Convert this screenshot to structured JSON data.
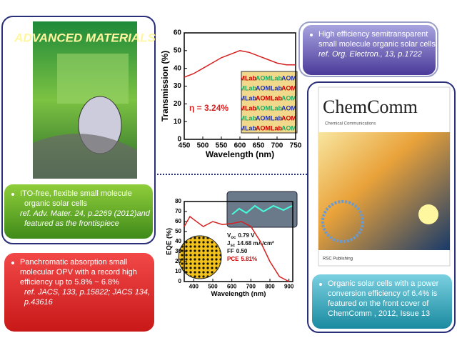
{
  "adv_mater": {
    "cover_title": "ADVANCED MATERIALS",
    "caption": [
      "ITO-free, flexible small molecule",
      "organic solar cells",
      "ref. Adv. Mater. 24, p.2269 (2012)and",
      "featured as the frontispiece"
    ]
  },
  "jacs": {
    "caption": [
      "Panchromatic absorption small",
      "molecular OPV with a record high",
      "efficiency up to  5.8% ~ 6.8%",
      "ref. JACS, 133, p.15822; JACS 134,",
      "p.43616"
    ]
  },
  "org_electron": {
    "caption": [
      "High efficiency semitransparent",
      "small molecule organic solar cells",
      "ref. Org. Electron., 13, p.1722"
    ]
  },
  "chemcomm": {
    "cover_title": "ChemComm",
    "cover_subtitle": "Chemical Communications",
    "publisher": "RSC Publishing",
    "caption": [
      "Organic solar cells with a power",
      "conversion efficiency of 6.4% is",
      "featured on the front cover of",
      "ChemComm , 2012, Issue 13"
    ]
  },
  "transmission": {
    "type": "line",
    "xlabel": "Wavelength (nm)",
    "ylabel": "Transmission (%)",
    "x": [
      450,
      475,
      500,
      525,
      550,
      575,
      600,
      625,
      650,
      675,
      700,
      725,
      750
    ],
    "values": [
      35,
      37,
      40,
      43,
      46,
      48,
      50,
      49,
      47,
      45,
      43,
      42,
      42
    ],
    "xlim": [
      450,
      750
    ],
    "ylim": [
      0,
      60
    ],
    "xticks": [
      450,
      500,
      550,
      600,
      650,
      700,
      750
    ],
    "yticks": [
      0,
      10,
      20,
      30,
      40,
      50,
      60
    ],
    "annotation": "η = 3.24%",
    "inset_label": "AOMLab",
    "color": "#d62020"
  },
  "eqe": {
    "type": "line",
    "xlabel": "Wavelength (nm)",
    "ylabel": "EQE (%)",
    "x": [
      350,
      380,
      400,
      450,
      500,
      550,
      600,
      650,
      700,
      750,
      800,
      850,
      900
    ],
    "values": [
      55,
      65,
      62,
      55,
      60,
      57,
      58,
      60,
      55,
      40,
      20,
      5,
      0
    ],
    "xlim": [
      350,
      920
    ],
    "ylim": [
      0,
      80
    ],
    "xticks": [
      400,
      500,
      600,
      700,
      800,
      900
    ],
    "yticks": [
      0,
      10,
      20,
      30,
      40,
      50,
      60,
      70,
      80
    ],
    "color": "#d62020",
    "parameters": [
      {
        "symbol": "V",
        "sub": "oc",
        "value": "0.79 V"
      },
      {
        "symbol": "J",
        "sub": "sc",
        "value": "14.68 mA/cm²"
      },
      {
        "symbol": "FF",
        "value": "0.50"
      },
      {
        "symbol": "PCE",
        "value": "5.81%"
      }
    ]
  }
}
